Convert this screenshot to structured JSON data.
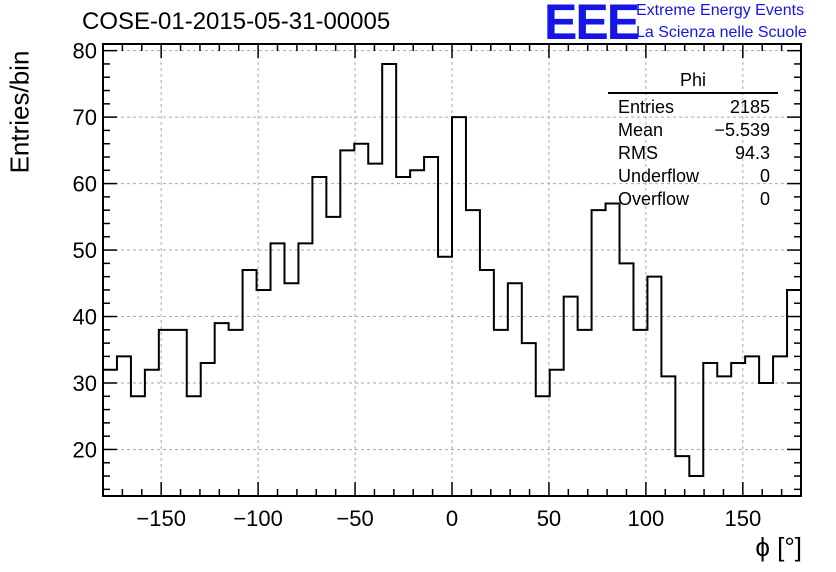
{
  "header": {
    "run_id": "COSE-01-2015-05-31-00005",
    "logo_text": "EEE",
    "logo_line1": "Extreme Energy Events",
    "logo_line2": "La Scienza nelle Scuole",
    "logo_color": "#1515e6"
  },
  "stats_box": {
    "title": "Phi",
    "rows": [
      {
        "label": "Entries",
        "value": "2185"
      },
      {
        "label": "Mean",
        "value": "−5.539"
      },
      {
        "label": "RMS",
        "value": "94.3"
      },
      {
        "label": "Underflow",
        "value": "0"
      },
      {
        "label": "Overflow",
        "value": "0"
      }
    ]
  },
  "chart_data": {
    "type": "bar",
    "title": "COSE-01-2015-05-31-00005",
    "xlabel": "ϕ [°]",
    "ylabel": "Entries/bin",
    "xlim": [
      -180,
      180
    ],
    "ylim": [
      13,
      81
    ],
    "bin_width": 7.2,
    "grid": true,
    "xticks": [
      -150,
      -100,
      -50,
      0,
      50,
      100,
      150
    ],
    "xtick_labels": [
      "−150",
      "−100",
      "−50",
      "0",
      "50",
      "100",
      "150"
    ],
    "yticks": [
      20,
      30,
      40,
      50,
      60,
      70,
      80
    ],
    "ytick_labels": [
      "20",
      "30",
      "40",
      "50",
      "60",
      "70",
      "80"
    ],
    "values": [
      32,
      34,
      28,
      32,
      38,
      38,
      28,
      33,
      39,
      38,
      47,
      44,
      51,
      45,
      51,
      61,
      55,
      65,
      66,
      63,
      78,
      61,
      62,
      64,
      49,
      70,
      56,
      47,
      38,
      45,
      36,
      28,
      32,
      43,
      38,
      56,
      57,
      48,
      38,
      46,
      31,
      19,
      16,
      33,
      31,
      33,
      34,
      30,
      34,
      44
    ],
    "line_color": "#000000"
  }
}
